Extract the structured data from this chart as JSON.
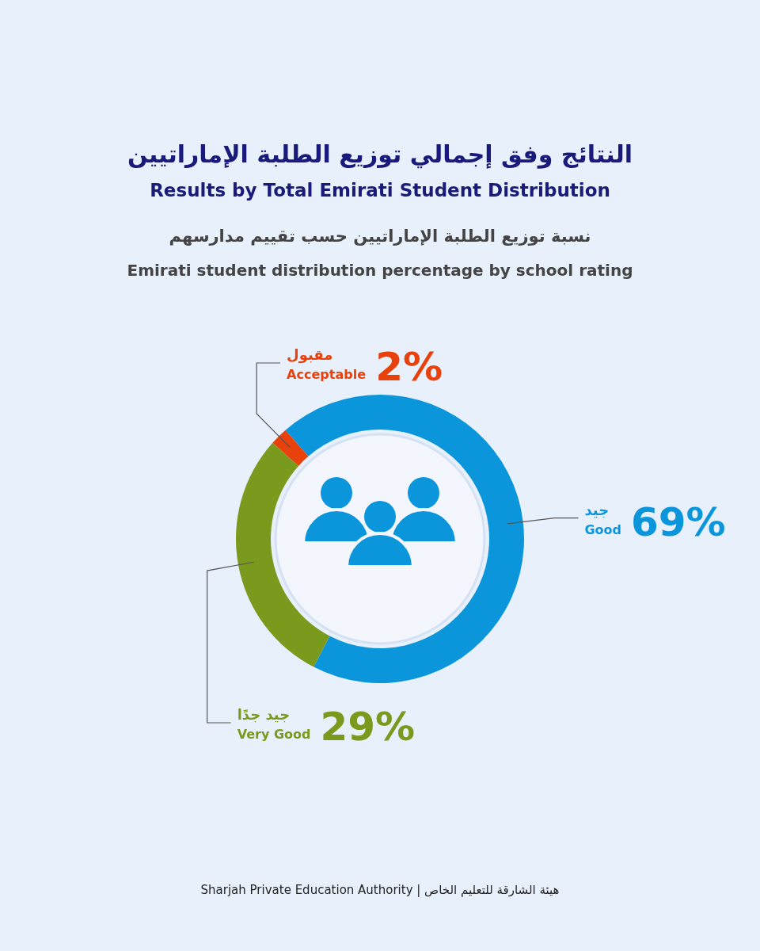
{
  "chart_data": {
    "type": "donut",
    "title": "النتائج وفق إجمالي توزيع الطلبة الإماراتيين",
    "subtitle": "Results by Total Emirati Student Distribution",
    "annotations": [
      "نسبة توزيع الطلبة الإماراتيين حسب تقييم مدارسهم",
      "Emirati student distribution percentage by school rating",
      "Sharjah Private Education Authority | هيئة الشارقة للتعليم الخاص"
    ],
    "categories": [
      "جيد\nGood",
      "جيد جدًا\nVery Good",
      "مقبول\nAcceptable"
    ],
    "values": [
      69,
      29,
      2
    ],
    "value_labels": [
      "69%",
      "29%",
      "2%"
    ],
    "colors": [
      "#0b96dc",
      "#7a9a1e",
      "#e8410b"
    ]
  }
}
